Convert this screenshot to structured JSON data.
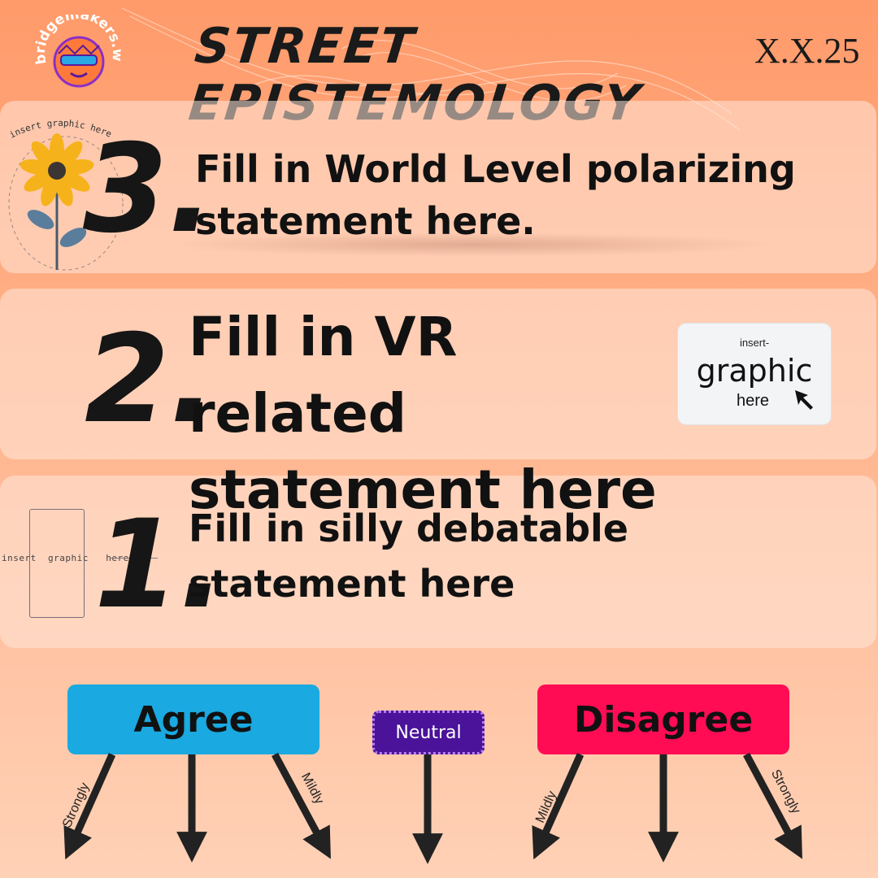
{
  "header": {
    "logo_text": "bridgemakers.world",
    "title": "STREET EPISTEMOLOGY",
    "date": "X.X.25"
  },
  "statements": [
    {
      "number": "3.",
      "text": "Fill in World Level polarizing statement here.",
      "placeholder": "insert graphic here"
    },
    {
      "number": "2.",
      "text": "Fill in VR related statement here",
      "placeholder_top": "insert-",
      "placeholder_main": "graphic",
      "placeholder_bottom": "here"
    },
    {
      "number": "1.",
      "text": "Fill in silly debatable statement here",
      "placeholder": "insert  graphic   here"
    }
  ],
  "scale": {
    "agree": "Agree",
    "neutral": "Neutral",
    "disagree": "Disagree",
    "labels": [
      "Strongly",
      "Mildly",
      "Mildly",
      "Strongly"
    ]
  },
  "colors": {
    "agree": "#1aa9e0",
    "disagree": "#ff0c55",
    "neutral": "#4a139a"
  },
  "icons": [
    "bridgemakers-logo",
    "flower-icon",
    "cursor-arrow-icon",
    "down-arrow-icon"
  ]
}
